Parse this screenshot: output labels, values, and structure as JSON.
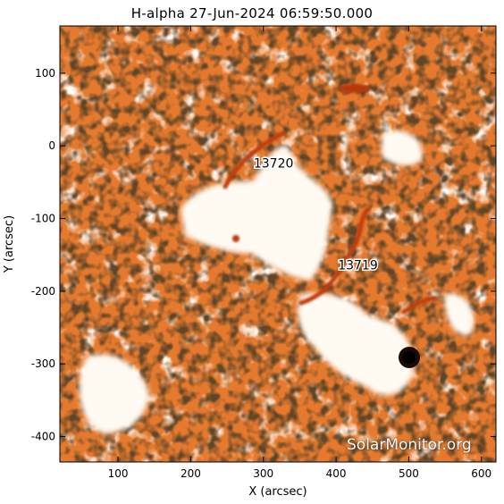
{
  "title": "H-alpha 27-Jun-2024 06:59:50.000",
  "x_axis": {
    "label": "X (arcsec)",
    "ticks": [
      "100",
      "200",
      "300",
      "400",
      "500",
      "600"
    ],
    "range": [
      20,
      620
    ]
  },
  "y_axis": {
    "label": "Y (arcsec)",
    "ticks": [
      "100",
      "0",
      "-100",
      "-200",
      "-300",
      "-400"
    ],
    "range": [
      -435,
      165
    ]
  },
  "regions": [
    {
      "label": "13720",
      "x": 314,
      "y": -30
    },
    {
      "label": "13719",
      "x": 430,
      "y": -170
    }
  ],
  "watermark": "SolarMonitor.org",
  "colors": {
    "background": "#e8782c",
    "plage": "#fffaf2",
    "filament": "#c84a10",
    "sunspot": "#1a0a04"
  }
}
